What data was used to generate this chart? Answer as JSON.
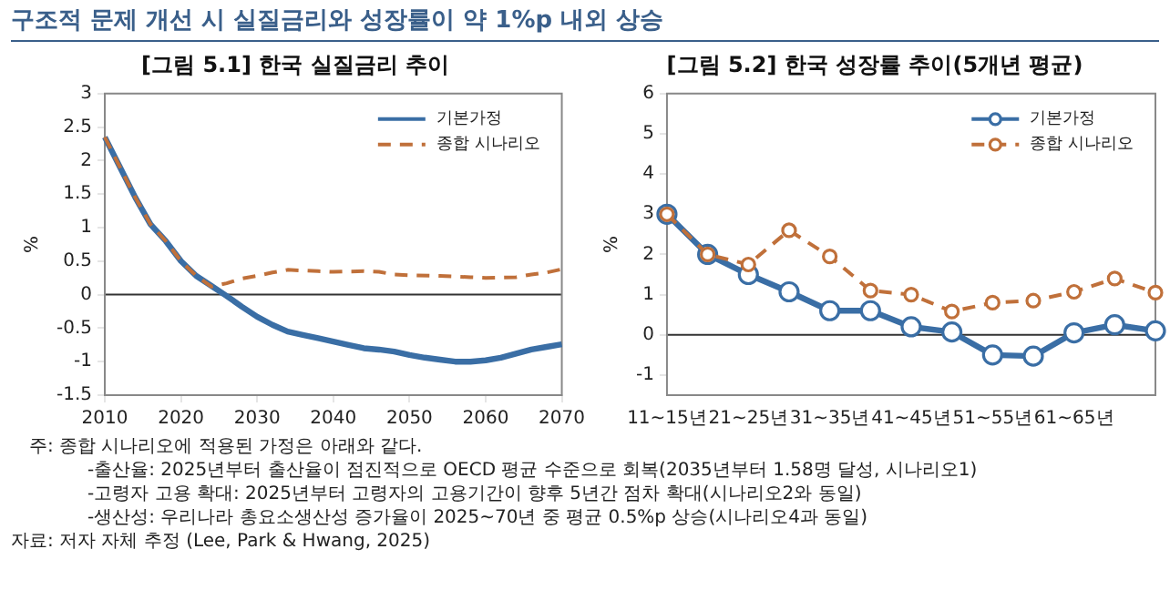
{
  "chart_data": [
    {
      "type": "other",
      "title": "구조적 문제 개선 시 실질금리와 성장률이 약 1%p 내외 상승"
    },
    {
      "type": "line",
      "title": "[그림 5.1] 한국 실질금리 추이",
      "ylabel": "%",
      "legend": "top right",
      "xlim": [
        2010,
        2070
      ],
      "xticks": [
        2010,
        2020,
        2030,
        2040,
        2050,
        2060,
        2070
      ],
      "ylim": [
        -1.5,
        3
      ],
      "yticks": [
        -1.5,
        -1,
        -0.5,
        0,
        0.5,
        1,
        1.5,
        2,
        2.5,
        3
      ],
      "ref_lines": [
        {
          "axis": "y",
          "value": 0,
          "color": "#333333"
        }
      ],
      "series": [
        {
          "name": "기본가정",
          "color": "#3a6ea5",
          "line_style": "solid",
          "marker": "none",
          "x": [
            2010,
            2012,
            2014,
            2016,
            2018,
            2020,
            2022,
            2024,
            2026,
            2028,
            2030,
            2032,
            2034,
            2036,
            2038,
            2040,
            2042,
            2044,
            2046,
            2048,
            2050,
            2052,
            2054,
            2056,
            2058,
            2060,
            2062,
            2064,
            2066,
            2068,
            2070
          ],
          "values": [
            2.35,
            1.9,
            1.45,
            1.05,
            0.8,
            0.5,
            0.28,
            0.13,
            -0.02,
            -0.18,
            -0.33,
            -0.45,
            -0.55,
            -0.6,
            -0.65,
            -0.7,
            -0.75,
            -0.8,
            -0.82,
            -0.85,
            -0.9,
            -0.94,
            -0.97,
            -1.0,
            -1.0,
            -0.98,
            -0.94,
            -0.88,
            -0.82,
            -0.78,
            -0.74
          ]
        },
        {
          "name": "종합 시나리오",
          "color": "#c0703a",
          "line_style": "dashed",
          "marker": "none",
          "x": [
            2010,
            2012,
            2014,
            2016,
            2018,
            2020,
            2022,
            2024,
            2026,
            2028,
            2030,
            2032,
            2034,
            2036,
            2038,
            2040,
            2044,
            2046,
            2048,
            2050,
            2054,
            2058,
            2060,
            2064,
            2066,
            2068,
            2070
          ],
          "values": [
            2.35,
            1.9,
            1.45,
            1.05,
            0.8,
            0.5,
            0.28,
            0.12,
            0.17,
            0.24,
            0.28,
            0.33,
            0.37,
            0.36,
            0.35,
            0.34,
            0.35,
            0.34,
            0.3,
            0.29,
            0.28,
            0.26,
            0.25,
            0.26,
            0.3,
            0.33,
            0.38
          ]
        }
      ]
    },
    {
      "type": "line",
      "title": "[그림 5.2] 한국 성장률 추이(5개년 평균)",
      "ylabel": "%",
      "legend": "top right",
      "categories": [
        "11~15년",
        null,
        "21~25년",
        null,
        "31~35년",
        null,
        "41~45년",
        null,
        "51~55년",
        null,
        "61~65년",
        null,
        null
      ],
      "ylim": [
        -1.5,
        6
      ],
      "yticks": [
        -1,
        0,
        1,
        2,
        3,
        4,
        5,
        6
      ],
      "ref_lines": [
        {
          "axis": "y",
          "value": 0,
          "color": "#333333"
        }
      ],
      "series": [
        {
          "name": "기본가정",
          "color": "#3a6ea5",
          "line_style": "solid",
          "marker": "circle",
          "values": [
            3.0,
            2.0,
            1.5,
            1.07,
            0.6,
            0.6,
            0.2,
            0.07,
            -0.5,
            -0.53,
            0.05,
            0.25,
            0.1
          ]
        },
        {
          "name": "종합 시나리오",
          "color": "#c0703a",
          "line_style": "dashed",
          "marker": "circle",
          "values": [
            3.0,
            2.0,
            1.75,
            2.6,
            1.95,
            1.1,
            1.0,
            0.58,
            0.8,
            0.85,
            1.07,
            1.4,
            1.05
          ]
        }
      ]
    },
    {
      "type": "other",
      "annotations": [
        "주: 종합 시나리오에 적용된 가정은 아래와 같다.",
        "-출산율: 2025년부터 출산율이 점진적으로 OECD 평균 수준으로 회복(2035년부터 1.58명 달성, 시나리오1)",
        "-고령자 고용 확대: 2025년부터 고령자의 고용기간이 향후 5년간 점차 확대(시나리오2와 동일)",
        "-생산성: 우리나라 총요소생산성 증가율이 2025~70년 중 평균 0.5%p 상승(시나리오4과 동일)",
        "자료: 저자 자체 추정 (Lee, Park & Hwang, 2025)"
      ]
    }
  ]
}
